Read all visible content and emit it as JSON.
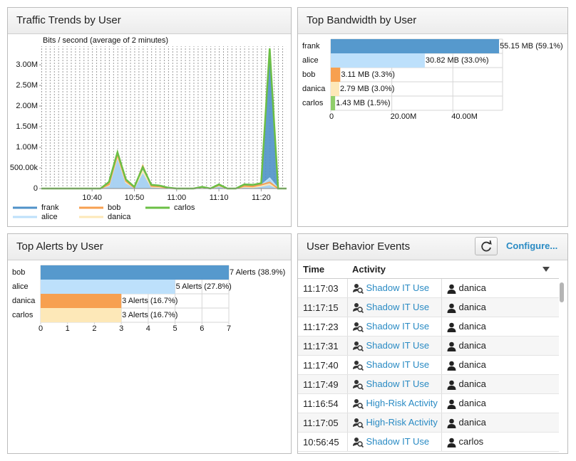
{
  "chart_data": [
    {
      "type": "area",
      "title": "Traffic Trends by User",
      "subtitle": "Bits / second (average of 2 minutes)",
      "x": [
        628,
        630,
        632,
        634,
        636,
        638,
        640,
        642,
        644,
        646,
        648,
        650,
        652,
        654,
        656,
        658,
        660,
        662,
        664,
        666,
        668,
        670,
        672,
        674,
        676,
        678,
        680,
        682,
        684,
        686
      ],
      "xlim": [
        628,
        686
      ],
      "xticks": [
        {
          "value": 640,
          "label": "10:40"
        },
        {
          "value": 650,
          "label": "10:50"
        },
        {
          "value": 660,
          "label": "11:00"
        },
        {
          "value": 670,
          "label": "11:10"
        },
        {
          "value": 680,
          "label": "11:20"
        }
      ],
      "ylim": [
        0,
        3450000
      ],
      "yticks": [
        0,
        {
          "value": 500000,
          "label": "500.00k"
        },
        {
          "value": 1000000,
          "label": "1.00M"
        },
        {
          "value": 1500000,
          "label": "1.50M"
        },
        {
          "value": 2000000,
          "label": "2.00M"
        },
        {
          "value": 2500000,
          "label": "2.50M"
        },
        {
          "value": 3000000,
          "label": "3.00M"
        }
      ],
      "series": [
        {
          "name": "frank",
          "color": "#4f92c8",
          "values": [
            0,
            0,
            0,
            0,
            0,
            0,
            0,
            0,
            150000,
            850000,
            200000,
            30000,
            480000,
            80000,
            60000,
            20000,
            0,
            0,
            0,
            30000,
            0,
            90000,
            0,
            0,
            80000,
            60000,
            100000,
            3300000,
            0,
            0
          ]
        },
        {
          "name": "alice",
          "color": "#bde0fb",
          "values": [
            0,
            0,
            0,
            0,
            0,
            0,
            0,
            0,
            100000,
            800000,
            150000,
            20000,
            400000,
            50000,
            40000,
            10000,
            0,
            0,
            0,
            20000,
            0,
            60000,
            0,
            0,
            50000,
            40000,
            80000,
            250000,
            0,
            0
          ]
        },
        {
          "name": "bob",
          "color": "#f7a050",
          "values": [
            0,
            0,
            0,
            0,
            0,
            0,
            0,
            0,
            100000,
            820000,
            180000,
            20000,
            550000,
            60000,
            50000,
            10000,
            0,
            0,
            0,
            40000,
            0,
            80000,
            0,
            0,
            60000,
            50000,
            90000,
            150000,
            0,
            0
          ]
        },
        {
          "name": "danica",
          "color": "#fde8b8",
          "values": [
            0,
            0,
            0,
            0,
            0,
            0,
            0,
            0,
            80000,
            780000,
            150000,
            20000,
            420000,
            40000,
            30000,
            10000,
            0,
            0,
            0,
            20000,
            0,
            70000,
            0,
            0,
            40000,
            30000,
            60000,
            100000,
            0,
            0
          ]
        },
        {
          "name": "carlos",
          "color": "#6bbf45",
          "values": [
            0,
            0,
            0,
            0,
            0,
            0,
            0,
            0,
            160000,
            880000,
            220000,
            40000,
            520000,
            90000,
            70000,
            20000,
            0,
            0,
            0,
            40000,
            0,
            100000,
            0,
            0,
            100000,
            90000,
            130000,
            3400000,
            0,
            0
          ]
        }
      ]
    },
    {
      "type": "hbar",
      "title": "Top Bandwidth by User",
      "categories": [
        "frank",
        "alice",
        "bob",
        "danica",
        "carlos"
      ],
      "values": [
        55150000,
        30820000,
        3110000,
        2790000,
        1430000
      ],
      "value_labels": [
        "55.15 MB (59.1%)",
        "30.82 MB (33.0%)",
        "3.11 MB (3.3%)",
        "2.79 MB (3.0%)",
        "1.43 MB (1.5%)"
      ],
      "colors": [
        "#5699cd",
        "#bde0fb",
        "#f7a050",
        "#fde8b8",
        "#8fce6a"
      ],
      "xlim": [
        0,
        56300000
      ],
      "xticks": [
        0,
        {
          "value": 20000000,
          "label": "20.00M"
        },
        {
          "value": 40000000,
          "label": "40.00M"
        }
      ]
    },
    {
      "type": "hbar",
      "title": "Top Alerts by User",
      "categories": [
        "bob",
        "alice",
        "danica",
        "carlos"
      ],
      "values": [
        7,
        5,
        3,
        3
      ],
      "value_labels": [
        "7 Alerts (38.9%)",
        "5 Alerts (27.8%)",
        "3 Alerts (16.7%)",
        "3 Alerts (16.7%)"
      ],
      "colors": [
        "#5699cd",
        "#bde0fb",
        "#f7a050",
        "#fde8b8"
      ],
      "xlim": [
        0,
        7
      ],
      "xticks": [
        0,
        1,
        2,
        3,
        4,
        5,
        6,
        7
      ]
    }
  ],
  "events": {
    "title": "User Behavior Events",
    "configure": "Configure...",
    "columns": [
      "Time",
      "Activity"
    ],
    "rows": [
      [
        "11:17:03",
        "Shadow IT Use",
        "danica"
      ],
      [
        "11:17:15",
        "Shadow IT Use",
        "danica"
      ],
      [
        "11:17:23",
        "Shadow IT Use",
        "danica"
      ],
      [
        "11:17:31",
        "Shadow IT Use",
        "danica"
      ],
      [
        "11:17:40",
        "Shadow IT Use",
        "danica"
      ],
      [
        "11:17:49",
        "Shadow IT Use",
        "danica"
      ],
      [
        "11:16:54",
        "High-Risk Activity",
        "danica"
      ],
      [
        "11:17:05",
        "High-Risk Activity",
        "danica"
      ],
      [
        "10:56:45",
        "Shadow IT Use",
        "carlos"
      ]
    ]
  }
}
